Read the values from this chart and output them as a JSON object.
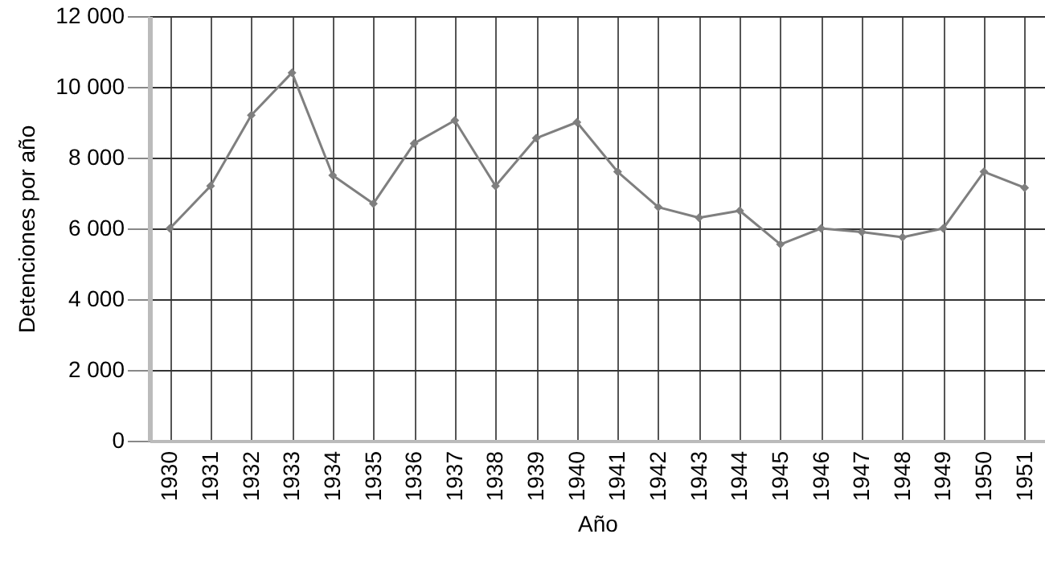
{
  "chart_data": {
    "type": "line",
    "xlabel": "Año",
    "ylabel": "Detenciones por año",
    "categories": [
      "1930",
      "1931",
      "1932",
      "1933",
      "1934",
      "1935",
      "1936",
      "1937",
      "1938",
      "1939",
      "1940",
      "1941",
      "1942",
      "1943",
      "1944",
      "1945",
      "1946",
      "1947",
      "1948",
      "1949",
      "1950",
      "1951"
    ],
    "series": [
      {
        "color": "#7f7f7f",
        "values": [
          6000,
          7200,
          9200,
          10400,
          7500,
          6700,
          8400,
          9050,
          7200,
          8550,
          9000,
          7600,
          6600,
          6300,
          6500,
          5550,
          6000,
          5900,
          5750,
          6000,
          7600,
          7150
        ]
      }
    ],
    "ylim": [
      0,
      12000
    ],
    "yticks": [
      {
        "value": 0,
        "label": "0"
      },
      {
        "value": 2000,
        "label": "2 000"
      },
      {
        "value": 4000,
        "label": "4 000"
      },
      {
        "value": 6000,
        "label": "6 000"
      },
      {
        "value": 8000,
        "label": "8 000"
      },
      {
        "value": 10000,
        "label": "10 000"
      },
      {
        "value": 12000,
        "label": "12 000"
      }
    ],
    "grid": true,
    "marker": "diamond",
    "line_style": "solid"
  }
}
